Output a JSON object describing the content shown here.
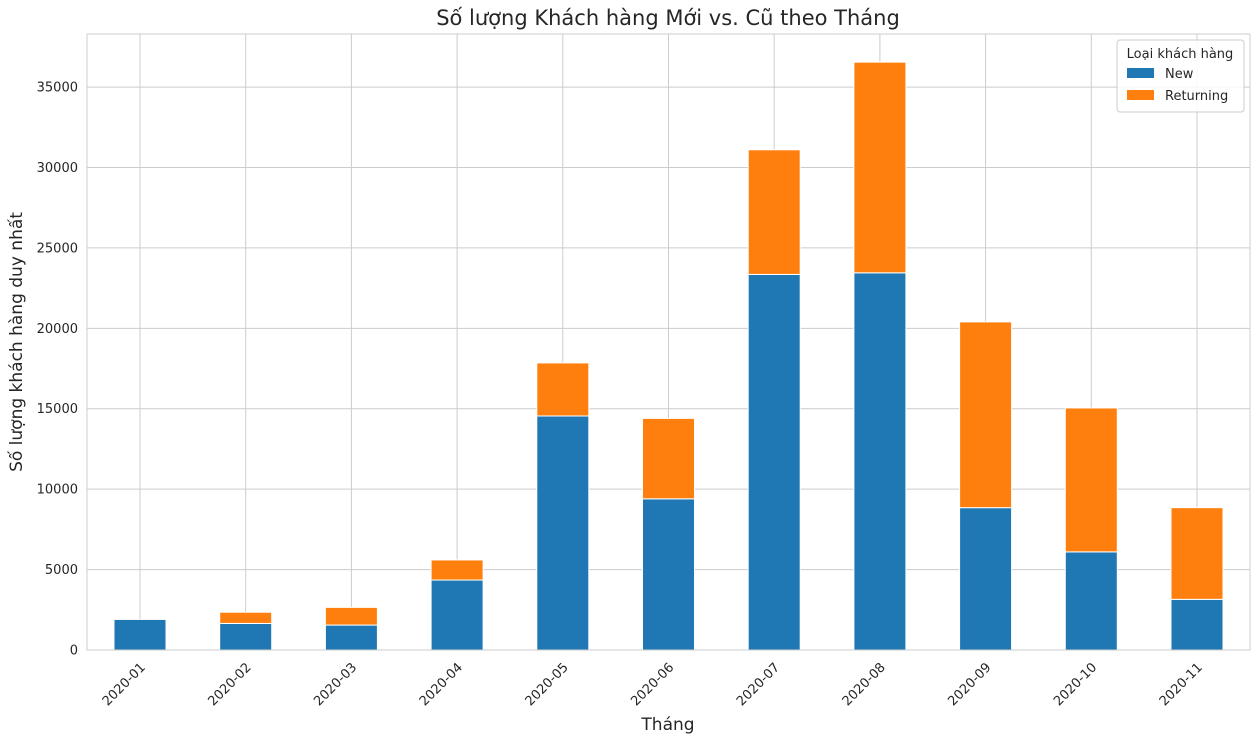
{
  "chart_data": {
    "type": "bar",
    "stacked": true,
    "title": "Số lượng Khách hàng Mới vs. Cũ theo Tháng",
    "xlabel": "Tháng",
    "ylabel": "Số lượng khách hàng duy nhất",
    "categories": [
      "2020-01",
      "2020-02",
      "2020-03",
      "2020-04",
      "2020-05",
      "2020-06",
      "2020-07",
      "2020-08",
      "2020-09",
      "2020-10",
      "2020-11"
    ],
    "series": [
      {
        "name": "New",
        "color": "#1f77b4",
        "values": [
          1900,
          1650,
          1550,
          4350,
          14550,
          9400,
          23350,
          23450,
          8850,
          6100,
          3150
        ]
      },
      {
        "name": "Returning",
        "color": "#ff7f0e",
        "values": [
          0,
          700,
          1100,
          1250,
          3300,
          5000,
          7750,
          13100,
          11550,
          8950,
          5700
        ]
      }
    ],
    "ylim": [
      0,
      38300
    ],
    "yticks": [
      0,
      5000,
      10000,
      15000,
      20000,
      25000,
      30000,
      35000
    ],
    "grid": true,
    "legend": {
      "title": "Loại khách hàng",
      "placement": "top-right"
    }
  }
}
